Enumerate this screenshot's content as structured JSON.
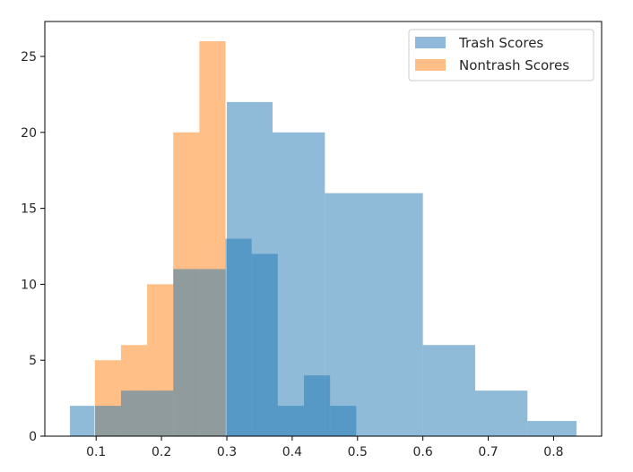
{
  "chart_data": {
    "type": "histogram",
    "title": "",
    "xlabel": "",
    "ylabel": "",
    "xlim": [
      0.0215,
      0.8735
    ],
    "ylim": [
      0,
      27.3
    ],
    "x_ticks": [
      0.1,
      0.2,
      0.3,
      0.4,
      0.5,
      0.6,
      0.7,
      0.8
    ],
    "x_tick_labels": [
      "0.1",
      "0.2",
      "0.3",
      "0.4",
      "0.5",
      "0.6",
      "0.7",
      "0.8"
    ],
    "y_ticks": [
      0,
      5,
      10,
      15,
      20,
      25
    ],
    "y_tick_labels": [
      "0",
      "5",
      "10",
      "15",
      "20",
      "25"
    ],
    "grid": false,
    "legend_position": "upper right",
    "series": [
      {
        "name": "Trash Scores",
        "color": "#1f77b4",
        "alpha": 0.5,
        "bins": [
          0.06,
          0.097,
          0.135,
          0.173,
          0.211,
          0.25,
          0.3,
          0.37,
          0.45,
          0.6,
          0.68,
          0.76,
          0.835
        ],
        "counts": [
          2,
          0,
          0,
          0,
          0,
          0,
          22,
          20,
          16,
          6,
          3,
          1
        ]
      },
      {
        "name": "Nontrash Scores",
        "color": "#ff7f0e",
        "alpha": 0.5,
        "bins": [
          0.098,
          0.138,
          0.178,
          0.218,
          0.258,
          0.298,
          0.338,
          0.378,
          0.418,
          0.458,
          0.498
        ],
        "counts": [
          5,
          6,
          10,
          20,
          26,
          0,
          0,
          0,
          0,
          0
        ]
      },
      {
        "name": "",
        "color": "#1f77b4",
        "alpha": 0.5,
        "bins": [
          0.098,
          0.138,
          0.178,
          0.218,
          0.258,
          0.298,
          0.338,
          0.378,
          0.418,
          0.458,
          0.498
        ],
        "counts": [
          2,
          3,
          3,
          11,
          11,
          13,
          12,
          2,
          4,
          2
        ]
      }
    ]
  }
}
